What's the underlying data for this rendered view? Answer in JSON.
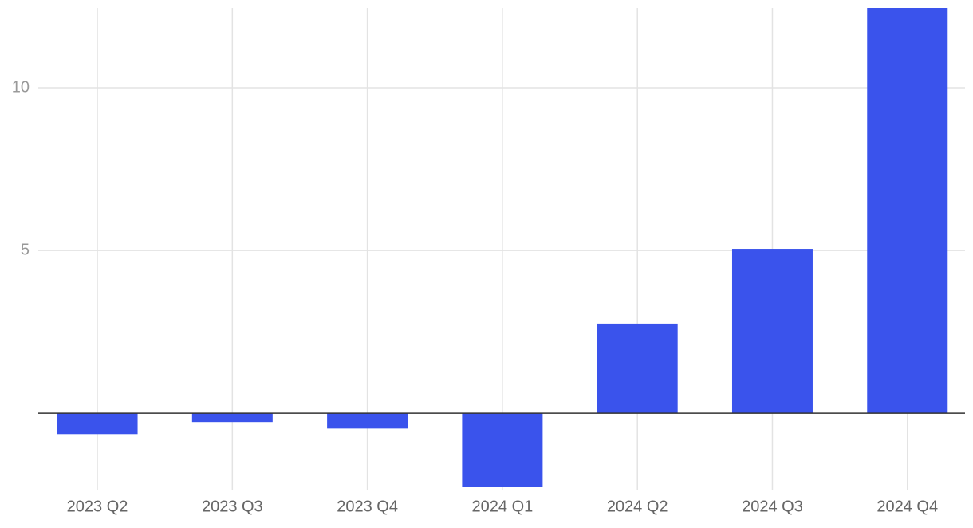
{
  "chart_data": {
    "type": "bar",
    "categories": [
      "2023 Q2",
      "2023 Q3",
      "2023 Q4",
      "2024 Q1",
      "2024 Q2",
      "2024 Q3",
      "2024 Q4"
    ],
    "values": [
      -0.64,
      -0.27,
      -0.47,
      -2.25,
      2.75,
      5.05,
      12.45
    ],
    "color": "#3a53ec",
    "ylim": [
      -2.25,
      12.45
    ],
    "yticks": [
      5,
      10
    ],
    "grid": true
  }
}
